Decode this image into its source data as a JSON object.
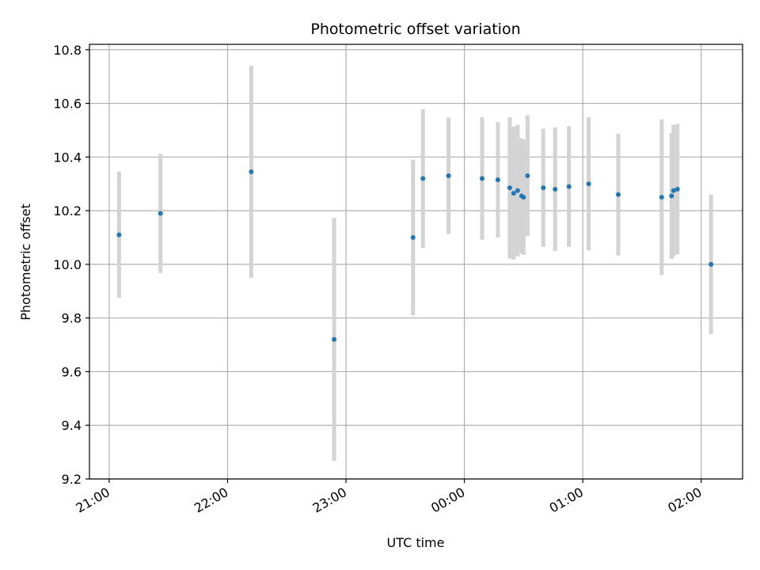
{
  "chart_data": {
    "type": "scatter",
    "title": "Photometric offset variation",
    "xlabel": "UTC time",
    "ylabel": "Photometric offset",
    "x_tick_labels": [
      "21:00",
      "22:00",
      "23:00",
      "00:00",
      "01:00",
      "02:00"
    ],
    "x_ticks": [
      "21:00",
      "22:00",
      "23:00",
      "00:00",
      "01:00",
      "02:00"
    ],
    "xlim": [
      "20:50",
      "02:21"
    ],
    "ylim": [
      9.2,
      10.82
    ],
    "y_ticks": [
      9.2,
      9.4,
      9.6,
      9.8,
      10.0,
      10.2,
      10.4,
      10.6,
      10.8
    ],
    "y_tick_labels": [
      "9.2",
      "9.4",
      "9.6",
      "9.8",
      "10.0",
      "10.2",
      "10.4",
      "10.6",
      "10.8"
    ],
    "grid": true,
    "colors": {
      "point": "#1f77b4",
      "errorbar": "#d3d3d3",
      "grid": "#b0b0b0"
    },
    "series": [
      {
        "points": [
          {
            "x": "21:05",
            "y": 10.11,
            "err": 0.235
          },
          {
            "x": "21:26",
            "y": 10.19,
            "err": 0.222
          },
          {
            "x": "22:12",
            "y": 10.345,
            "err": 0.395
          },
          {
            "x": "22:54",
            "y": 9.72,
            "err": 0.453
          },
          {
            "x": "23:34",
            "y": 10.1,
            "err": 0.29
          },
          {
            "x": "23:39",
            "y": 10.32,
            "err": 0.258
          },
          {
            "x": "23:52",
            "y": 10.33,
            "err": 0.217
          },
          {
            "x": "00:09",
            "y": 10.32,
            "err": 0.228
          },
          {
            "x": "00:17",
            "y": 10.315,
            "err": 0.215
          },
          {
            "x": "00:23",
            "y": 10.285,
            "err": 0.263
          },
          {
            "x": "00:25",
            "y": 10.265,
            "err": 0.248
          },
          {
            "x": "00:27",
            "y": 10.275,
            "err": 0.245
          },
          {
            "x": "00:29",
            "y": 10.255,
            "err": 0.215
          },
          {
            "x": "00:30",
            "y": 10.25,
            "err": 0.215
          },
          {
            "x": "00:32",
            "y": 10.33,
            "err": 0.225
          },
          {
            "x": "00:40",
            "y": 10.285,
            "err": 0.22
          },
          {
            "x": "00:46",
            "y": 10.28,
            "err": 0.23
          },
          {
            "x": "00:53",
            "y": 10.29,
            "err": 0.225
          },
          {
            "x": "01:03",
            "y": 10.3,
            "err": 0.248
          },
          {
            "x": "01:18",
            "y": 10.26,
            "err": 0.227
          },
          {
            "x": "01:40",
            "y": 10.25,
            "err": 0.29
          },
          {
            "x": "01:45",
            "y": 10.255,
            "err": 0.235
          },
          {
            "x": "01:46",
            "y": 10.275,
            "err": 0.245
          },
          {
            "x": "01:48",
            "y": 10.28,
            "err": 0.243
          },
          {
            "x": "02:05",
            "y": 10.0,
            "err": 0.26
          }
        ]
      }
    ]
  }
}
